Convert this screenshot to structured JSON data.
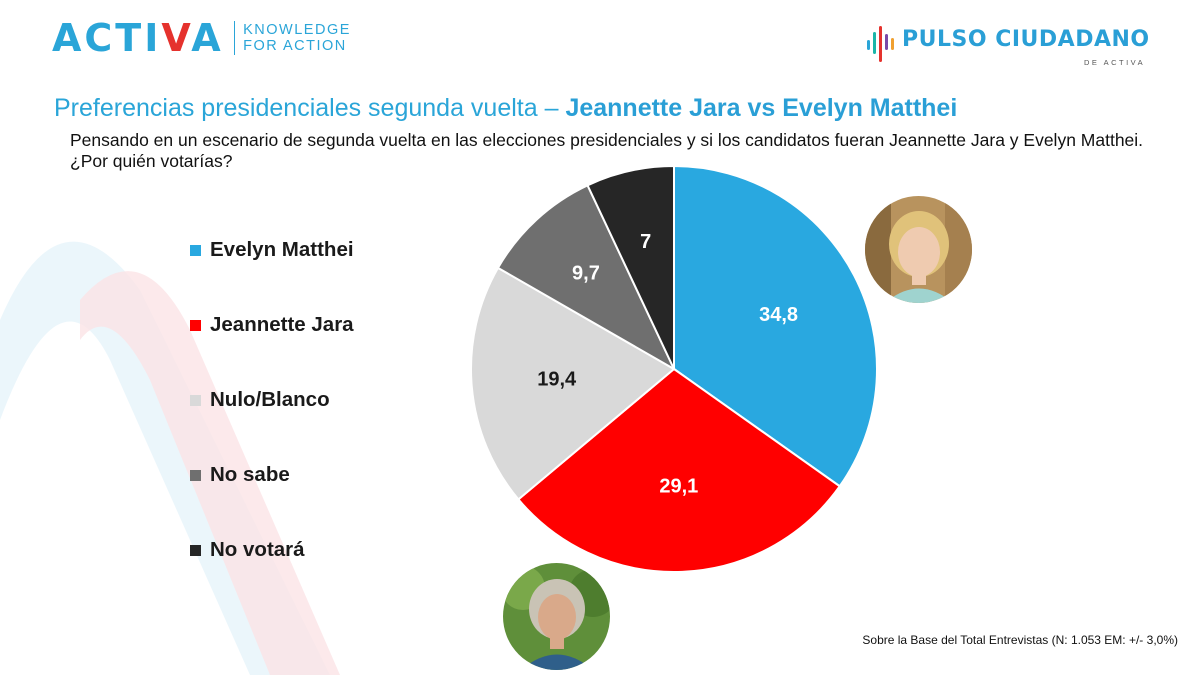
{
  "header": {
    "activa_logo": {
      "wordmark_left": "ACTI",
      "wordmark_v": "V",
      "wordmark_right": "A",
      "tagline_line1": "KNOWLEDGE",
      "tagline_line2": "FOR ACTION"
    },
    "pulso_logo": {
      "name": "PULSO CIUDADANO",
      "sub": "DE ACTIVA"
    }
  },
  "title": {
    "prefix": "Preferencias presidenciales segunda vuelta – ",
    "highlight": "Jeannette Jara vs Evelyn Matthei"
  },
  "question": "Pensando en un escenario de segunda vuelta en las elecciones presidenciales y si los candidatos fueran Jeannette Jara y Evelyn Matthei. ¿Por quién votarías?",
  "footnote": "Sobre la Base del Total Entrevistas (N: 1.053 EM: +/- 3,0%)",
  "colors": {
    "accent_blue": "#2aa5d8",
    "accent_red": "#e5322d"
  },
  "photos": [
    {
      "name": "evelyn-matthei-photo",
      "icon": "portrait-blonde-woman"
    },
    {
      "name": "jeannette-jara-photo",
      "icon": "portrait-grey-haired-woman"
    }
  ],
  "chart_data": {
    "type": "pie",
    "title": "Preferencias presidenciales segunda vuelta – Jeannette Jara vs Evelyn Matthei",
    "start_angle_deg": 0,
    "direction": "clockwise",
    "legend_position": "left",
    "slices": [
      {
        "label": "Evelyn Matthei",
        "value": 34.8,
        "display": "34,8",
        "color": "#29a8e0",
        "label_color": "#ffffff"
      },
      {
        "label": "Jeannette Jara",
        "value": 29.1,
        "display": "29,1",
        "color": "#ff0000",
        "label_color": "#ffffff"
      },
      {
        "label": "Nulo/Blanco",
        "value": 19.4,
        "display": "19,4",
        "color": "#d9d9d9",
        "label_color": "#1a1a1a"
      },
      {
        "label": "No sabe",
        "value": 9.7,
        "display": "9,7",
        "color": "#6f6f6f",
        "label_color": "#ffffff"
      },
      {
        "label": "No votará",
        "value": 7,
        "display": "7",
        "color": "#262626",
        "label_color": "#ffffff"
      }
    ]
  }
}
